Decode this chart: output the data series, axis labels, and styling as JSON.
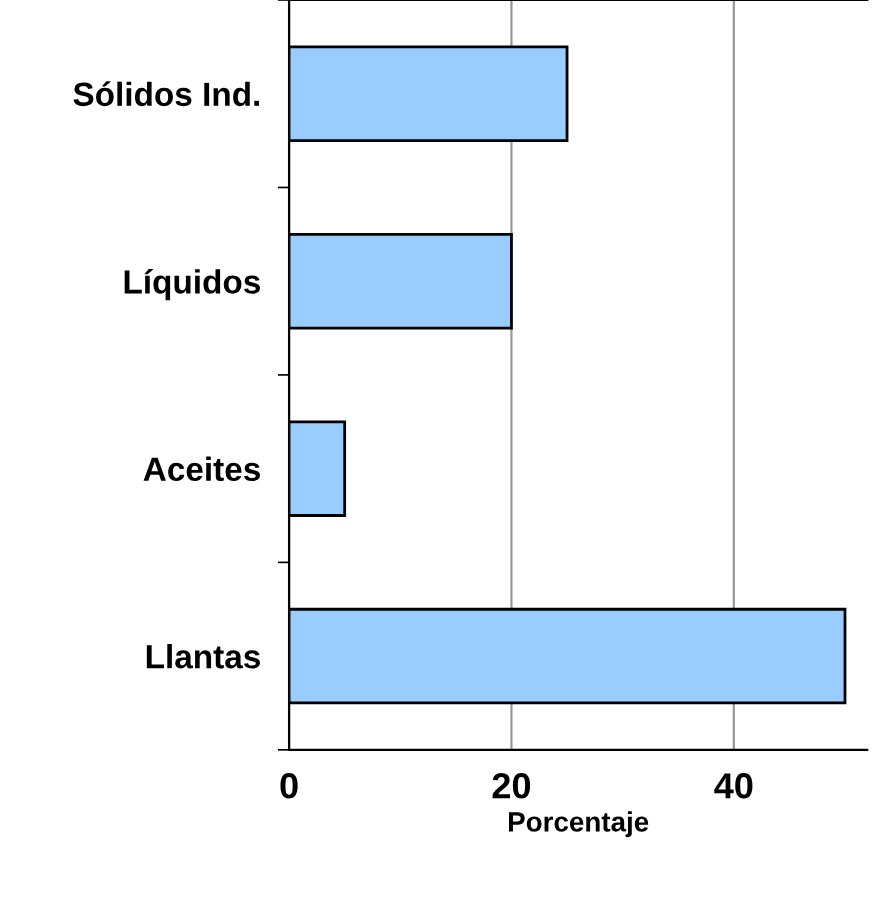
{
  "chart_data": {
    "type": "bar",
    "orientation": "horizontal",
    "xlabel": "Porcentaje",
    "categories": [
      "Sólidos Ind.",
      "Líquidos",
      "Aceites",
      "Llantas"
    ],
    "values": [
      25,
      20,
      5,
      50
    ],
    "color": "#99ccff",
    "xlim": [
      0,
      52
    ],
    "xticks": [
      0,
      20,
      40
    ],
    "grid": "x"
  }
}
